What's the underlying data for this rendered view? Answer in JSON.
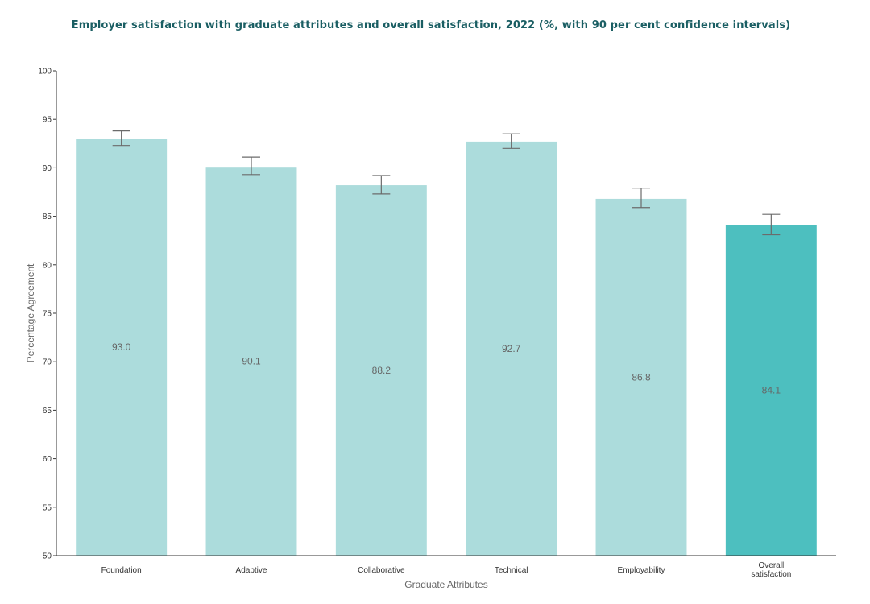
{
  "chart_data": {
    "type": "bar",
    "title": "Employer satisfaction with graduate attributes and overall satisfaction, 2022 (%, with 90 per cent confidence intervals)",
    "xlabel": "Graduate Attributes",
    "ylabel": "Percentage Agreement",
    "ylim": [
      50,
      100
    ],
    "yticks": [
      50,
      55,
      60,
      65,
      70,
      75,
      80,
      85,
      90,
      95,
      100
    ],
    "grid": false,
    "categories": [
      "Foundation",
      "Adaptive",
      "Collaborative",
      "Technical",
      "Employability",
      "Overall satisfaction"
    ],
    "category_label_lines": [
      [
        "Foundation"
      ],
      [
        "Adaptive"
      ],
      [
        "Collaborative"
      ],
      [
        "Technical"
      ],
      [
        "Employability"
      ],
      [
        "Overall",
        "satisfaction"
      ]
    ],
    "values": [
      93.0,
      90.1,
      88.2,
      92.7,
      86.8,
      84.1
    ],
    "value_labels": [
      "93.0",
      "90.1",
      "88.2",
      "92.7",
      "86.8",
      "84.1"
    ],
    "ci_lower": [
      92.3,
      89.3,
      87.3,
      92.0,
      85.9,
      83.1
    ],
    "ci_upper": [
      93.8,
      91.1,
      89.2,
      93.5,
      87.9,
      85.2
    ],
    "colors": {
      "attribute_bar": "#acdcdc",
      "overall_bar": "#4dbfbf",
      "error_bar": "#6b6b6b",
      "axis": "#333333",
      "title": "#1a5e63"
    }
  }
}
